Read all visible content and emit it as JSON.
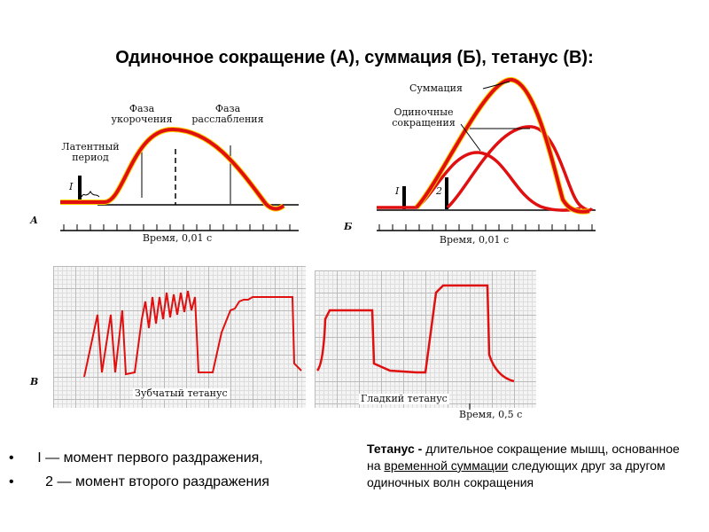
{
  "title": "Одиночное сокращение (А),  суммация (Б),  тетанус (В):",
  "panel_a": {
    "letter": "А",
    "stimulus": "I",
    "latent": "Латентный период",
    "shortening": "Фаза укорочения",
    "relaxation": "Фаза расслабления",
    "axis": "Время, 0,01 с"
  },
  "panel_b": {
    "letter": "Б",
    "stim1": "I",
    "stim2": "2",
    "summation": "Суммация",
    "single": "Одиночные сокращения",
    "axis": "Время, 0,01 с"
  },
  "panel_v": {
    "letter": "В",
    "jagged": "Зубчатый тетанус",
    "smooth": "Гладкий тетанус",
    "axis": "Время, 0,5 с"
  },
  "bullets": [
    "I — момент первого раздражения,",
    "2 — момент второго раздражения"
  ],
  "definition": {
    "term": "Тетанус",
    "dash": " - ",
    "text1": "длительное сокращение мышц,  основанное на ",
    "link": "временной суммации",
    "text2": " следующих друг за другом одиночных волн сокращения"
  },
  "colors": {
    "curve": "#e01010",
    "glow": "#ffd000"
  }
}
